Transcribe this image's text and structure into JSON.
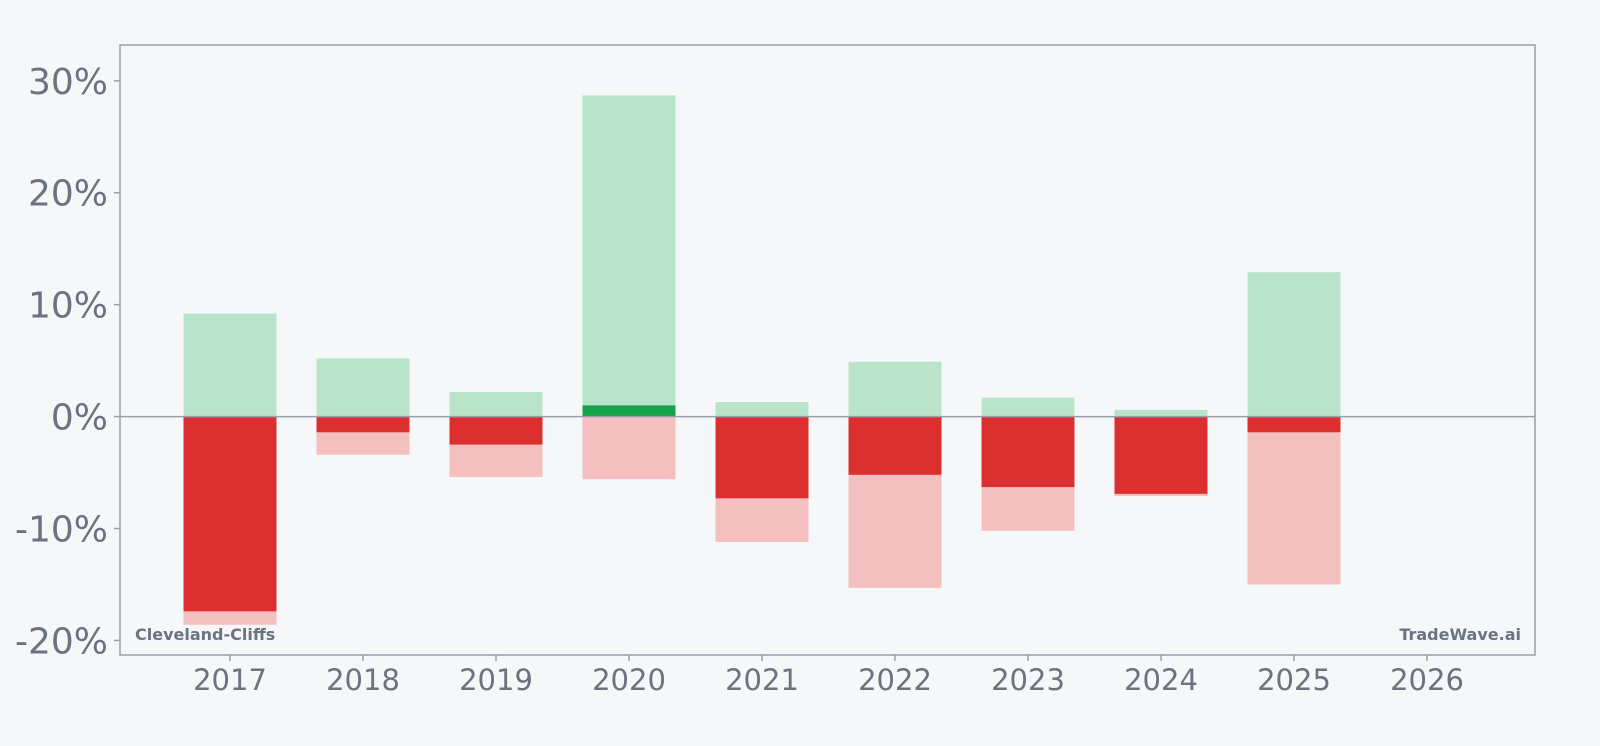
{
  "chart_data": {
    "type": "bar",
    "title": "",
    "xlabel": "",
    "ylabel": "",
    "categories": [
      "2017",
      "2018",
      "2019",
      "2020",
      "2021",
      "2022",
      "2023",
      "2024",
      "2025",
      "2026"
    ],
    "y_ticks": [
      -20,
      -10,
      0,
      10,
      20,
      30
    ],
    "y_tick_labels": [
      "-20%",
      "-10%",
      "0%",
      "10%",
      "20%",
      "30%"
    ],
    "ylim": [
      -21.3,
      33.2
    ],
    "grid": false,
    "series": [
      {
        "name": "",
        "role": "range-high",
        "color": "#b9e4c9",
        "values": [
          9.2,
          5.2,
          2.2,
          28.7,
          1.3,
          4.9,
          1.7,
          0.6,
          12.9,
          null
        ]
      },
      {
        "name": "",
        "role": "range-low",
        "color": "#f4bfbf",
        "values": [
          -18.6,
          -3.4,
          -5.4,
          -5.6,
          -11.2,
          -15.3,
          -10.2,
          -7.1,
          -15.0,
          null
        ]
      },
      {
        "name": "",
        "role": "annual-return",
        "colors": {
          "positive": "#16a34a",
          "negative": "#dc2f2f"
        },
        "values": [
          -17.4,
          -1.4,
          -2.5,
          1.0,
          -7.3,
          -5.2,
          -6.3,
          -6.9,
          -1.4,
          null
        ]
      }
    ],
    "annotations": {
      "left": "Cleveland-Cliffs",
      "right": "TradeWave.ai"
    }
  },
  "colors": {
    "background": "#f5f7f9",
    "frame": "#9aa0ab",
    "text": "#6b7280",
    "zero_line": "#9aa0ab"
  }
}
